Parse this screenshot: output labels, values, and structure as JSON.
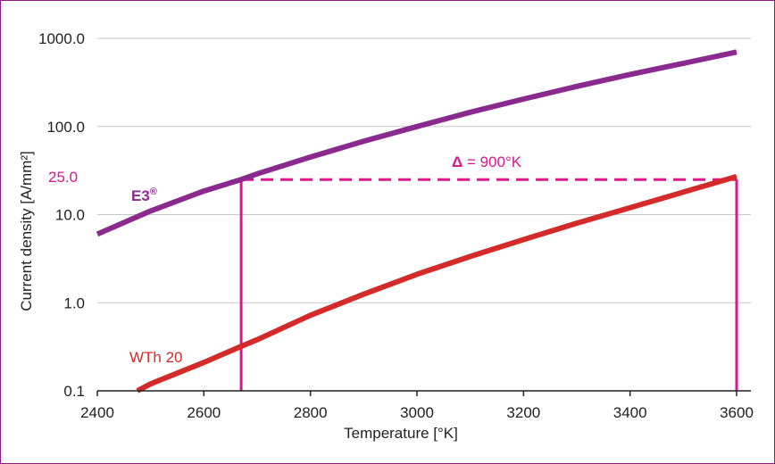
{
  "chart_data": {
    "type": "line",
    "xlabel": "Temperature [°K]",
    "ylabel": "Current density [A/mm²]",
    "xlim": [
      2400,
      3600
    ],
    "ylim": [
      0.1,
      1000
    ],
    "yscale": "log",
    "grid": true,
    "x_ticks": [
      "2400",
      "2600",
      "2800",
      "3000",
      "3200",
      "3400",
      "3600"
    ],
    "y_ticks": [
      {
        "value": 0.1,
        "label": "0.1"
      },
      {
        "value": 1,
        "label": "1.0"
      },
      {
        "value": 10,
        "label": "10.0"
      },
      {
        "value": 100,
        "label": "100.0"
      },
      {
        "value": 1000,
        "label": "1000.0"
      }
    ],
    "series": [
      {
        "name": "E3",
        "label": "E3",
        "label_mark": "®",
        "color": "#8b2a8e",
        "x": [
          2400,
          2500,
          2600,
          2670,
          2700,
          2800,
          2900,
          3000,
          3100,
          3200,
          3300,
          3400,
          3500,
          3600
        ],
        "values": [
          6,
          11,
          18.5,
          25,
          29,
          45,
          68,
          100,
          145,
          205,
          285,
          390,
          520,
          700
        ]
      },
      {
        "name": "WTh 20",
        "label": "WTh 20",
        "color": "#d42a2a",
        "x": [
          2475,
          2500,
          2600,
          2670,
          2700,
          2800,
          2900,
          3000,
          3100,
          3200,
          3300,
          3400,
          3500,
          3600
        ],
        "values": [
          0.1,
          0.12,
          0.21,
          0.32,
          0.38,
          0.72,
          1.25,
          2.1,
          3.35,
          5.2,
          8,
          12,
          18,
          27
        ]
      }
    ],
    "annotation": {
      "level_label": "25.0",
      "level_value": 25,
      "x_start": 2670,
      "x_end": 3600,
      "delta_symbol": "Δ",
      "delta_text": " = 900°K",
      "color": "#e0148b"
    }
  }
}
